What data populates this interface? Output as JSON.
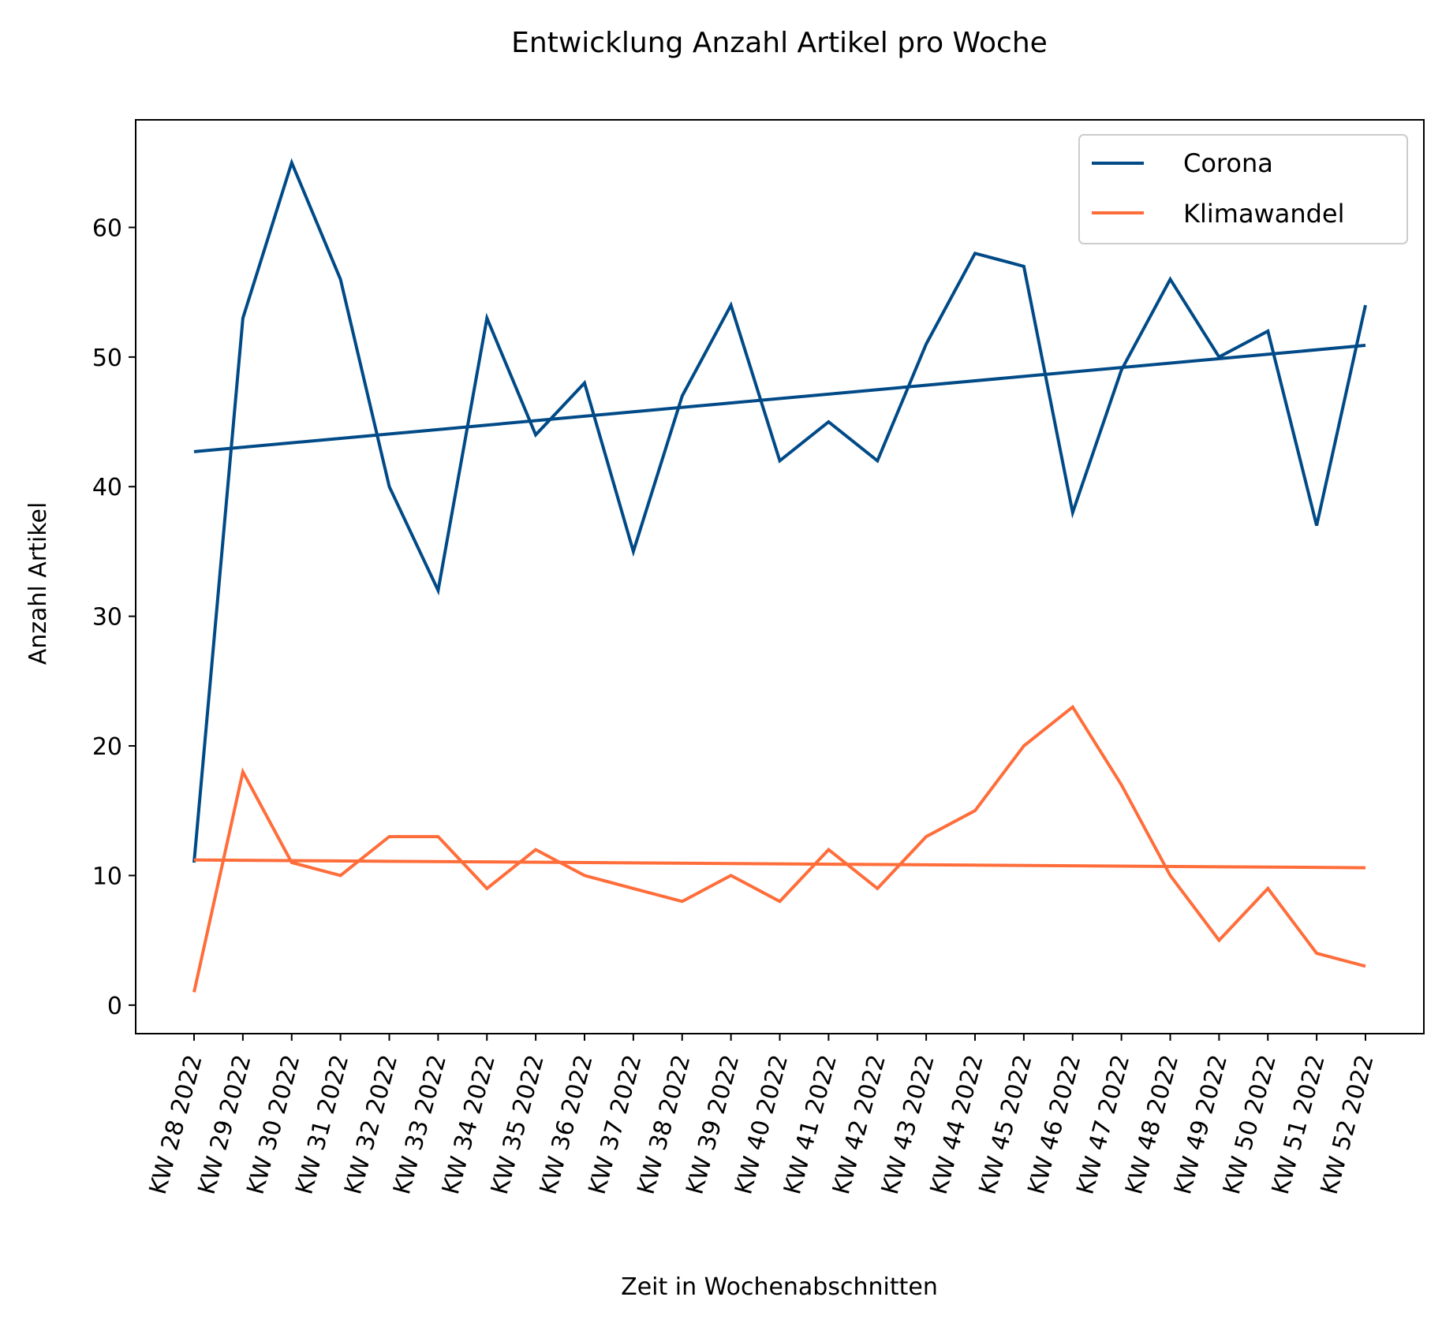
{
  "chart_data": {
    "type": "line",
    "title": "Entwicklung Anzahl Artikel pro Woche",
    "xlabel": "Zeit in Wochenabschnitten",
    "ylabel": "Anzahl Artikel",
    "ylim": [
      -2.2,
      68.3
    ],
    "yticks": [
      0,
      10,
      20,
      30,
      40,
      50,
      60
    ],
    "grid": false,
    "legend_position": "top-right",
    "categories": [
      "KW 28 2022",
      "KW 29 2022",
      "KW 30 2022",
      "KW 31 2022",
      "KW 32 2022",
      "KW 33 2022",
      "KW 34 2022",
      "KW 35 2022",
      "KW 36 2022",
      "KW 37 2022",
      "KW 38 2022",
      "KW 39 2022",
      "KW 40 2022",
      "KW 41 2022",
      "KW 42 2022",
      "KW 43 2022",
      "KW 44 2022",
      "KW 45 2022",
      "KW 46 2022",
      "KW 47 2022",
      "KW 48 2022",
      "KW 49 2022",
      "KW 50 2022",
      "KW 51 2022",
      "KW 52 2022"
    ],
    "series": [
      {
        "name": "Corona",
        "color": "#004a87",
        "values": [
          11,
          53,
          65,
          56,
          40,
          32,
          53,
          44,
          48,
          35,
          47,
          54,
          42,
          45,
          42,
          51,
          58,
          57,
          38,
          49,
          56,
          50,
          52,
          37,
          54
        ],
        "trend": [
          42.7,
          50.9
        ]
      },
      {
        "name": "Klimawandel",
        "color": "#ff6d3a",
        "values": [
          1,
          18,
          11,
          10,
          13,
          13,
          9,
          12,
          10,
          9,
          8,
          10,
          8,
          12,
          9,
          13,
          15,
          20,
          23,
          17,
          10,
          5,
          9,
          4,
          3
        ],
        "trend": [
          11.2,
          10.6
        ]
      }
    ]
  }
}
